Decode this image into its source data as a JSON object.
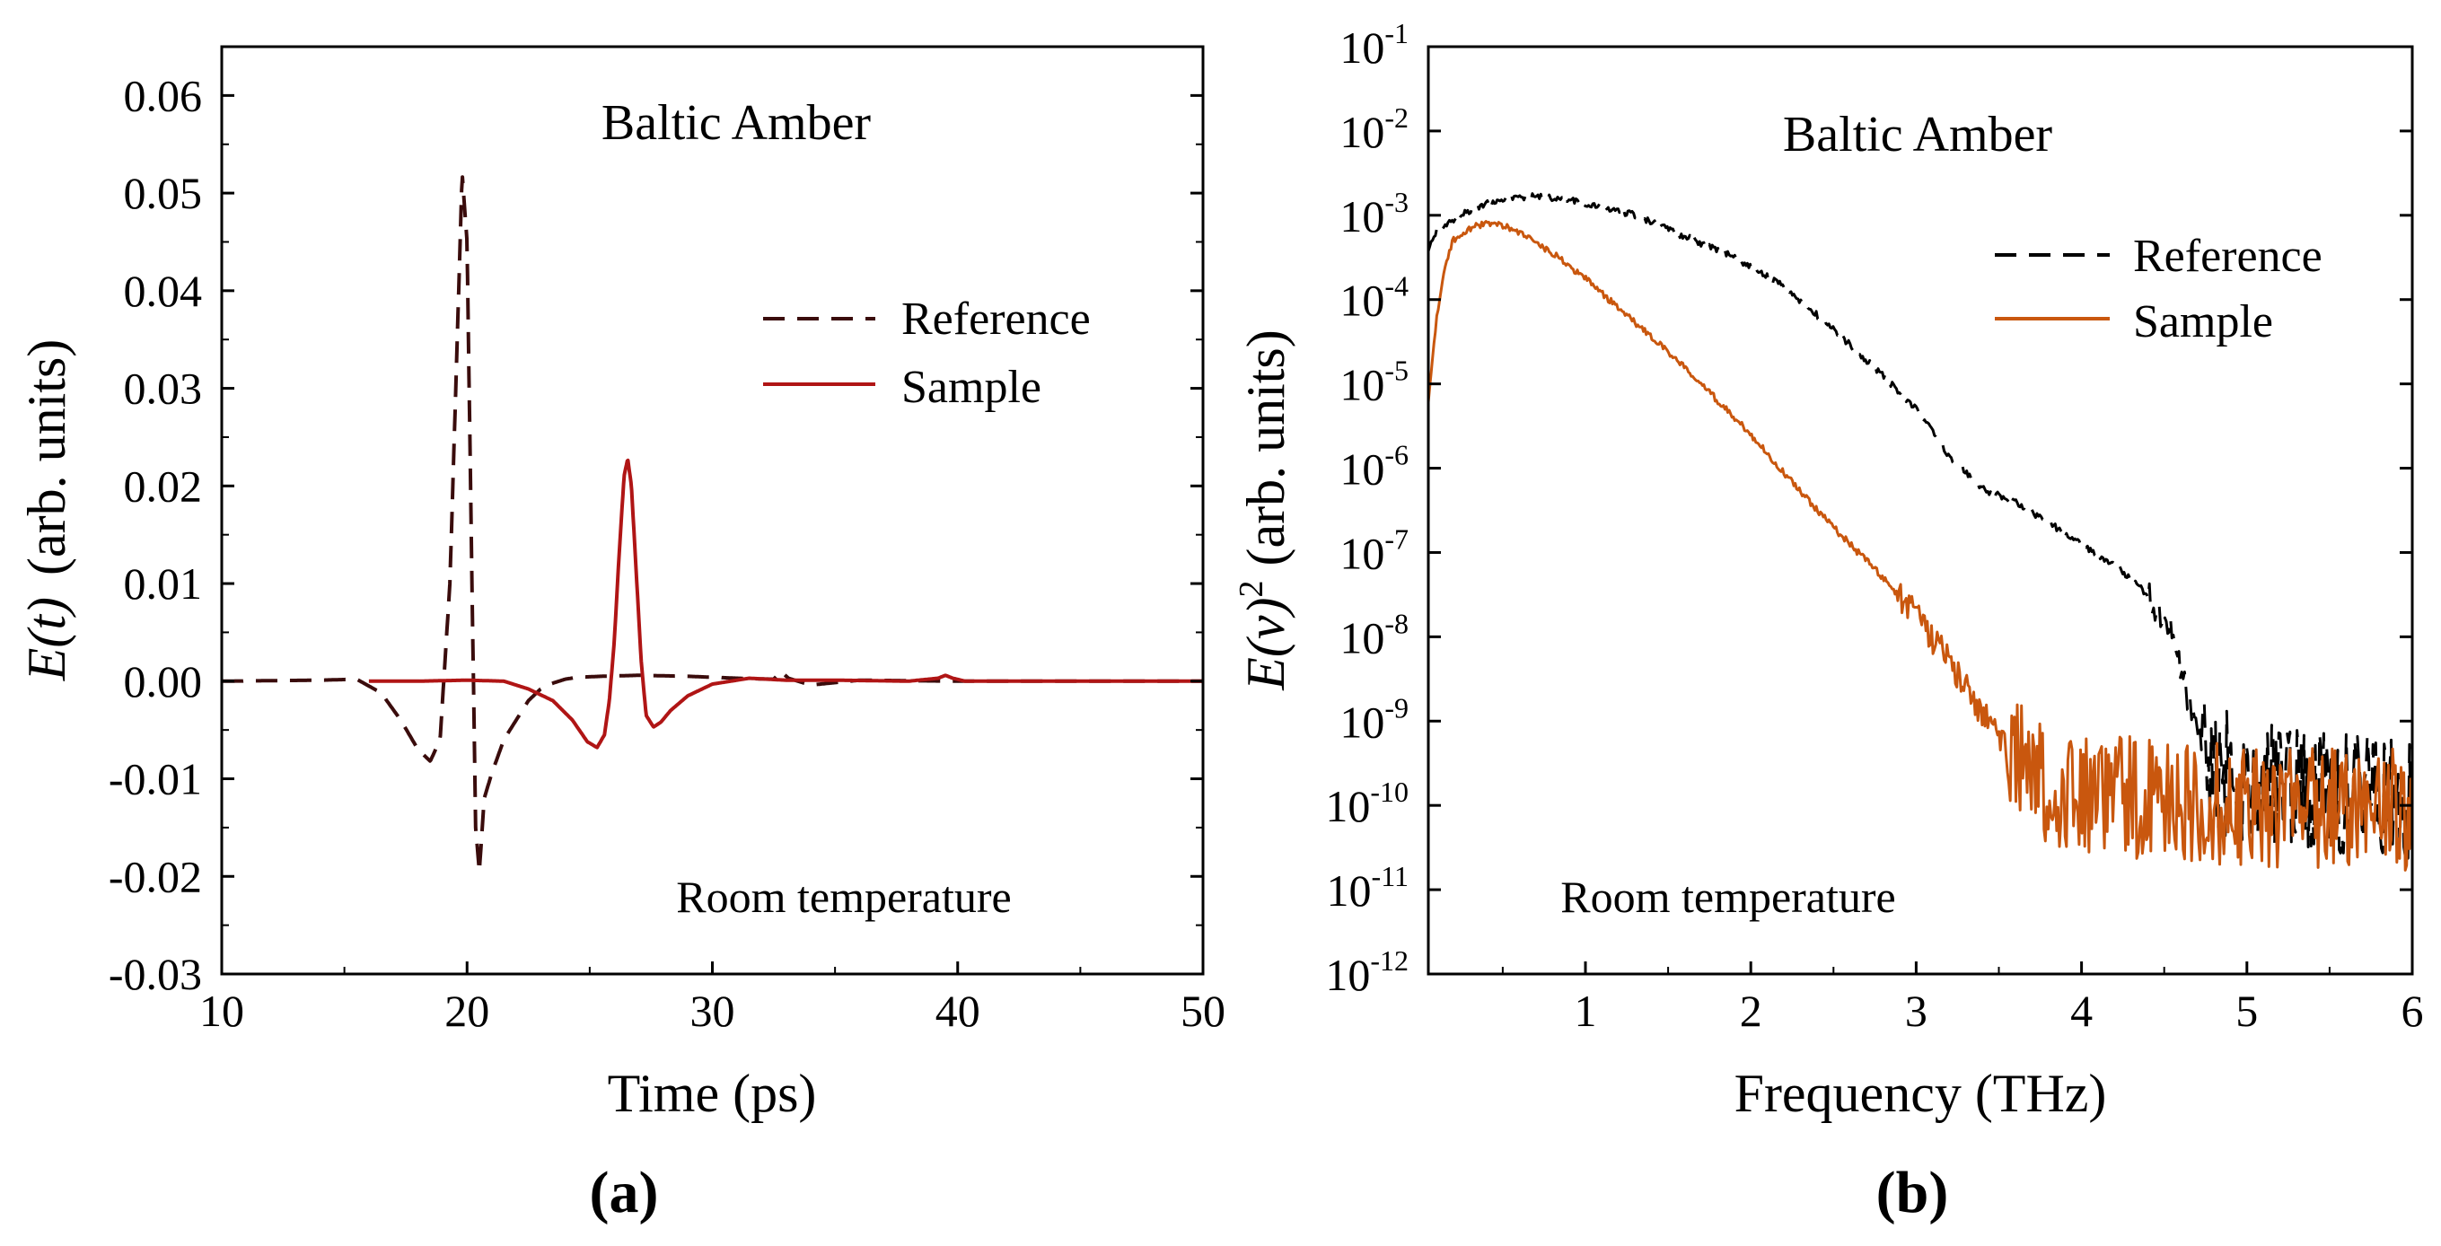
{
  "chart_data": [
    {
      "type": "line",
      "panel_label": "(a)",
      "title": "Baltic Amber",
      "annotation": "Room temperature",
      "xlabel": "Time (ps)",
      "ylabel_fn": "E(t)",
      "ylabel_units": "(arb. units)",
      "xlim": [
        10,
        50
      ],
      "ylim": [
        -0.03,
        0.065
      ],
      "xticks": [
        10,
        20,
        30,
        40,
        50
      ],
      "xtick_labels": [
        "10",
        "20",
        "30",
        "40",
        "50"
      ],
      "yticks": [
        -0.03,
        -0.02,
        -0.01,
        0.0,
        0.01,
        0.02,
        0.03,
        0.04,
        0.05,
        0.06
      ],
      "ytick_labels": [
        "-0.03",
        "-0.02",
        "-0.01",
        "0.00",
        "0.01",
        "0.02",
        "0.03",
        "0.04",
        "0.05",
        "0.06"
      ],
      "legend_position": "top-right",
      "series": [
        {
          "name": "Reference",
          "style": "dashed",
          "color": "#3a0c0c",
          "x": [
            10,
            14,
            15.5,
            16.5,
            17.3,
            18.0,
            18.5,
            18.9,
            19.3,
            19.6,
            19.8,
            20.0,
            20.2,
            20.35,
            20.5,
            20.7,
            21.0,
            21.5,
            22.0,
            22.5,
            23.0,
            23.5,
            24.0,
            24.5,
            25.5,
            27,
            29,
            31,
            32.5,
            32.8,
            33.1,
            34,
            36,
            40,
            50
          ],
          "y": [
            0,
            0.0001,
            0.0002,
            -0.0012,
            -0.004,
            -0.007,
            -0.0082,
            -0.006,
            0.01,
            0.035,
            0.052,
            0.045,
            0.01,
            -0.015,
            -0.0195,
            -0.012,
            -0.0095,
            -0.006,
            -0.004,
            -0.002,
            -0.0008,
            -0.0002,
            0.0002,
            0.0004,
            0.0005,
            0.0006,
            0.0005,
            0.0003,
            0.0002,
            0.001,
            0.0003,
            -0.0004,
            0.0001,
            0.0,
            0.0
          ]
        },
        {
          "name": "Sample",
          "style": "solid",
          "color": "#b01515",
          "x": [
            16.0,
            18,
            20,
            21.5,
            22.5,
            23.5,
            24.3,
            24.9,
            25.3,
            25.6,
            25.8,
            26.0,
            26.2,
            26.4,
            26.55,
            26.7,
            26.9,
            27.1,
            27.3,
            27.6,
            27.9,
            28.3,
            29,
            30,
            31.5,
            33,
            35,
            38,
            39.2,
            39.5,
            39.8,
            40.3,
            42,
            50
          ],
          "y": [
            0,
            0,
            0.0001,
            0.0,
            -0.0008,
            -0.002,
            -0.004,
            -0.0062,
            -0.0068,
            -0.0055,
            -0.002,
            0.004,
            0.013,
            0.021,
            0.0228,
            0.02,
            0.011,
            0.002,
            -0.0035,
            -0.0047,
            -0.0042,
            -0.003,
            -0.0015,
            -0.0003,
            0.0003,
            0.0001,
            0.0001,
            0.0,
            0.0003,
            0.0006,
            0.0003,
            0.0,
            0.0,
            0.0
          ]
        }
      ]
    },
    {
      "type": "line",
      "yscale": "log",
      "panel_label": "(b)",
      "title": "Baltic Amber",
      "annotation": "Room temperature",
      "xlabel": "Frequency (THz)",
      "ylabel_fn": "E(ν)",
      "ylabel_sup": "2",
      "ylabel_units": "(arb. units)",
      "xlim": [
        0.05,
        6
      ],
      "ylim_exp": [
        -12,
        -1
      ],
      "xticks": [
        1,
        2,
        3,
        4,
        5,
        6
      ],
      "xtick_labels": [
        "1",
        "2",
        "3",
        "4",
        "5",
        "6"
      ],
      "ytick_base": "10",
      "ytick_exponents": [
        "-12",
        "-11",
        "-10",
        "-9",
        "-8",
        "-7",
        "-6",
        "-5",
        "-4",
        "-3",
        "-2",
        "-1"
      ],
      "legend_position": "top-right",
      "series": [
        {
          "name": "Reference",
          "style": "dashed",
          "color": "#000000",
          "x": [
            0.05,
            0.1,
            0.2,
            0.3,
            0.4,
            0.5,
            0.7,
            0.9,
            1.1,
            1.3,
            1.6,
            1.9,
            2.2,
            2.5,
            2.8,
            3.0,
            3.2,
            3.4,
            3.6,
            3.8,
            4.0,
            4.2,
            4.4,
            4.55,
            4.65,
            4.75,
            4.85,
            5.0,
            5.2,
            5.4,
            5.6,
            5.8,
            6.0
          ],
          "log10_y": [
            -3.4,
            -3.2,
            -3.05,
            -2.95,
            -2.85,
            -2.8,
            -2.78,
            -2.82,
            -2.9,
            -3.0,
            -3.25,
            -3.5,
            -3.85,
            -4.35,
            -4.9,
            -5.3,
            -5.85,
            -6.25,
            -6.4,
            -6.65,
            -6.9,
            -7.15,
            -7.5,
            -8.0,
            -8.8,
            -9.3,
            -9.6,
            -9.7,
            -9.75,
            -9.8,
            -9.85,
            -9.85,
            -9.9
          ]
        },
        {
          "name": "Sample",
          "style": "solid",
          "color": "#c9570e",
          "x": [
            0.05,
            0.1,
            0.15,
            0.2,
            0.3,
            0.4,
            0.5,
            0.6,
            0.8,
            1.0,
            1.2,
            1.4,
            1.6,
            1.8,
            2.0,
            2.2,
            2.4,
            2.6,
            2.8,
            3.0,
            3.2,
            3.4,
            3.6,
            3.8,
            4.0,
            4.5,
            5.0,
            5.5,
            6.0
          ],
          "log10_y": [
            -5.2,
            -4.2,
            -3.6,
            -3.3,
            -3.15,
            -3.1,
            -3.12,
            -3.2,
            -3.45,
            -3.75,
            -4.1,
            -4.45,
            -4.8,
            -5.2,
            -5.6,
            -6.05,
            -6.5,
            -6.9,
            -7.3,
            -7.75,
            -8.3,
            -8.9,
            -9.45,
            -9.75,
            -9.9,
            -9.95,
            -10.0,
            -10.0,
            -10.05
          ]
        }
      ]
    }
  ]
}
